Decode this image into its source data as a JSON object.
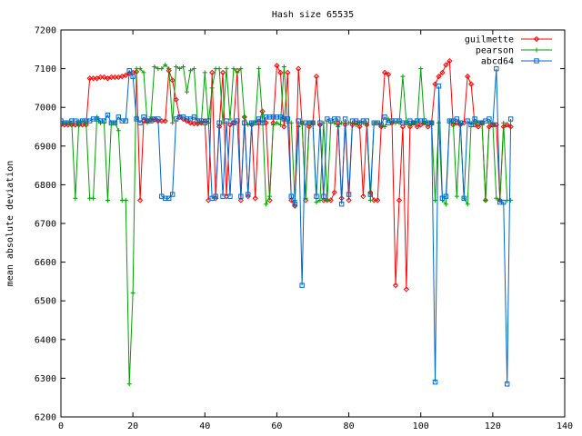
{
  "chart_data": {
    "type": "line",
    "title": "Hash size 65535",
    "xlabel": "",
    "ylabel": "mean absolute deviation",
    "xlim": [
      0,
      140
    ],
    "ylim": [
      6200,
      7200
    ],
    "xticks": [
      0,
      20,
      40,
      60,
      80,
      100,
      120,
      140
    ],
    "yticks": [
      6200,
      6300,
      6400,
      6500,
      6600,
      6700,
      6800,
      6900,
      7000,
      7100,
      7200
    ],
    "grid": false,
    "legend_position": "top-right",
    "series": [
      {
        "name": "guilmette",
        "color": "#ff0000",
        "marker": "diamond",
        "values": [
          6955,
          6955,
          6955,
          6955,
          6955,
          6955,
          6955,
          6955,
          7075,
          7075,
          7075,
          7078,
          7078,
          7075,
          7078,
          7078,
          7078,
          7080,
          7083,
          7088,
          7090,
          7092,
          6760,
          6965,
          6965,
          6968,
          6968,
          6965,
          6965,
          6965,
          7095,
          7070,
          7020,
          6975,
          6970,
          6965,
          6960,
          6958,
          6958,
          6960,
          6965,
          6760,
          7090,
          6765,
          6950,
          7090,
          6770,
          6955,
          6960,
          7095,
          6760,
          6975,
          6770,
          6955,
          6765,
          6960,
          6990,
          6960,
          6760,
          6960,
          7108,
          7090,
          6950,
          7090,
          6760,
          6745,
          7100,
          6960,
          6760,
          6950,
          6960,
          7080,
          6955,
          6760,
          6760,
          6760,
          6780,
          6960,
          6765,
          6955,
          6760,
          6955,
          6960,
          6950,
          6770,
          6955,
          6780,
          6760,
          6760,
          6950,
          7090,
          7085,
          6960,
          6540,
          6760,
          6950,
          6530,
          6950,
          6960,
          6950,
          6955,
          6960,
          6950,
          6960,
          7060,
          7080,
          7090,
          7110,
          7120,
          6955,
          6960,
          6955,
          6960,
          7080,
          7060,
          6955,
          6950,
          6960,
          6760,
          6950,
          6955,
          6955,
          6760,
          6950,
          6955,
          6950
        ]
      },
      {
        "name": "pearson",
        "color": "#00a000",
        "marker": "plus",
        "values": [
          6960,
          6960,
          6960,
          6960,
          6765,
          6965,
          6965,
          6960,
          6765,
          6765,
          6975,
          6960,
          6960,
          6760,
          6960,
          6960,
          6940,
          6760,
          6760,
          6285,
          6520,
          7100,
          7100,
          7090,
          6960,
          6975,
          7105,
          7100,
          7100,
          7110,
          7100,
          6960,
          7105,
          7100,
          7105,
          7040,
          7095,
          7100,
          6960,
          6960,
          7090,
          6960,
          7050,
          7100,
          7100,
          6960,
          7100,
          6970,
          7100,
          7090,
          7100,
          6975,
          6955,
          6960,
          6960,
          7100,
          6975,
          6750,
          6770,
          6955,
          6960,
          6955,
          7105,
          6960,
          6960,
          6760,
          6950,
          6960,
          6765,
          6960,
          6960,
          6755,
          6760,
          6960,
          6760,
          6960,
          6960,
          6950,
          6960,
          6960,
          6960,
          6960,
          6955,
          6960,
          6960,
          6955,
          6760,
          6960,
          6960,
          6955,
          6950,
          6970,
          6960,
          6960,
          6960,
          7080,
          6960,
          6955,
          6960,
          6960,
          7100,
          6960,
          6960,
          6960,
          6760,
          6960,
          6760,
          6750,
          6965,
          6960,
          6770,
          6960,
          6765,
          6750,
          6960,
          6960,
          6960,
          6960,
          6760,
          6960,
          6960,
          6765,
          6760,
          6960,
          6760,
          6760
        ]
      },
      {
        "name": "abcd64",
        "color": "#0066cc",
        "marker": "square",
        "values": [
          6965,
          6960,
          6960,
          6965,
          6965,
          6960,
          6965,
          6965,
          6965,
          6970,
          6970,
          6965,
          6965,
          6980,
          6960,
          6960,
          6975,
          6965,
          6965,
          7095,
          7080,
          6970,
          6960,
          6975,
          6965,
          6965,
          6970,
          6970,
          6770,
          6765,
          6765,
          6775,
          6970,
          6975,
          6975,
          6970,
          6970,
          6975,
          6965,
          6965,
          6960,
          6965,
          6765,
          6770,
          6960,
          6770,
          6965,
          6770,
          6960,
          6965,
          6770,
          6960,
          6775,
          6960,
          6960,
          6970,
          6960,
          6975,
          6975,
          6975,
          6975,
          6975,
          6970,
          6970,
          6770,
          6750,
          6965,
          6540,
          6960,
          6960,
          6960,
          6770,
          6960,
          6770,
          6970,
          6965,
          6970,
          6970,
          6750,
          6970,
          6775,
          6965,
          6965,
          6960,
          6965,
          6965,
          6775,
          6960,
          6960,
          6955,
          6975,
          6960,
          6965,
          6965,
          6965,
          6960,
          6960,
          6965,
          6960,
          6965,
          6965,
          6965,
          6960,
          6960,
          6290,
          7055,
          6765,
          6770,
          6965,
          6965,
          6970,
          6960,
          6765,
          6965,
          6955,
          6970,
          6960,
          6960,
          6965,
          6970,
          6955,
          7100,
          6755,
          6755,
          6285,
          6970
        ]
      }
    ]
  }
}
